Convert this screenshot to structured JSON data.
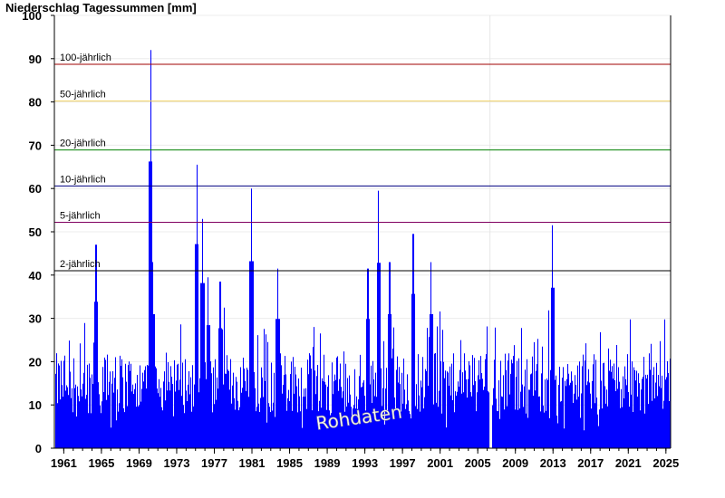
{
  "title": "Niederschlag Tagessummen [mm]",
  "chart_data": {
    "type": "bar",
    "title": "Niederschlag Tagessummen [mm]",
    "xlabel": "",
    "ylabel": "",
    "ylim": [
      0,
      100
    ],
    "xlim": [
      1960,
      2025.5
    ],
    "yticks": [
      0,
      10,
      20,
      30,
      40,
      50,
      60,
      70,
      80,
      90,
      100
    ],
    "xticks": [
      "1961",
      "1965",
      "1969",
      "1973",
      "1977",
      "1981",
      "1985",
      "1989",
      "1993",
      "1997",
      "2001",
      "2005",
      "2009",
      "2013",
      "2017",
      "2021",
      "2025"
    ],
    "grid": true,
    "bar_color": "#0000ff",
    "watermark": "Rohdaten",
    "reference_lines": [
      {
        "label": "100-jährlich",
        "value": 88.7,
        "color": "#a00000"
      },
      {
        "label": "50-jährlich",
        "value": 80.2,
        "color": "#f0d060"
      },
      {
        "label": "20-jährlich",
        "value": 68.9,
        "color": "#008000"
      },
      {
        "label": "10-jährlich",
        "value": 60.6,
        "color": "#000080"
      },
      {
        "label": "5-jährlich",
        "value": 52.2,
        "color": "#800060"
      },
      {
        "label": "2-jährlich",
        "value": 41.0,
        "color": "#000000"
      }
    ],
    "peaks": [
      {
        "x": 1964.4,
        "y": 47
      },
      {
        "x": 1970.2,
        "y": 92
      },
      {
        "x": 1970.4,
        "y": 43
      },
      {
        "x": 1975.1,
        "y": 65.5
      },
      {
        "x": 1975.7,
        "y": 53
      },
      {
        "x": 1976.3,
        "y": 39.5
      },
      {
        "x": 1977.6,
        "y": 38.5
      },
      {
        "x": 1980.9,
        "y": 60
      },
      {
        "x": 1983.7,
        "y": 41.5
      },
      {
        "x": 1993.3,
        "y": 41.5
      },
      {
        "x": 1994.4,
        "y": 59.5
      },
      {
        "x": 1995.6,
        "y": 43
      },
      {
        "x": 1998.1,
        "y": 49.5
      },
      {
        "x": 2000.0,
        "y": 43
      },
      {
        "x": 2012.9,
        "y": 51.5
      }
    ],
    "gap": {
      "from": 2006.2,
      "to": 2006.5
    }
  }
}
